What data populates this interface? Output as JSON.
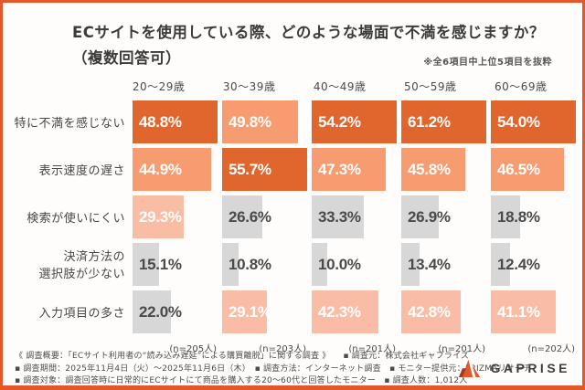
{
  "accent_color": "#e4572b",
  "title": {
    "line1": "ECサイトを使用している際、どのような場面で不満を感じますか？",
    "line2": "（複数回答可）",
    "note": "※全6項目中上位5項目を抜粋"
  },
  "chart_data": {
    "type": "bar",
    "orientation": "horizontal",
    "description": "Grid of horizontal bars; within each age column, bar width is scaled so the column maximum fills the track. Top three values per column are colored by rank, the rest are gray.",
    "columns": [
      "20〜29歳",
      "30〜39歳",
      "40〜49歳",
      "50〜59歳",
      "60〜69歳"
    ],
    "rows": [
      {
        "label": "特に不満を感じない",
        "values": [
          48.8,
          49.8,
          54.2,
          61.2,
          54.0
        ]
      },
      {
        "label": "表示速度の遅さ",
        "values": [
          44.9,
          55.7,
          47.3,
          45.8,
          46.5
        ]
      },
      {
        "label": "検索が使いにくい",
        "values": [
          29.3,
          26.6,
          33.3,
          26.9,
          18.8
        ]
      },
      {
        "label": "決済方法の\n選択肢が少ない",
        "values": [
          15.1,
          10.8,
          10.0,
          13.4,
          12.4
        ]
      },
      {
        "label": "入力項目の多さ",
        "values": [
          22.0,
          29.1,
          42.3,
          42.8,
          41.1
        ]
      }
    ],
    "value_suffix": "%",
    "sample_sizes": [
      "(n=205人)",
      "(n=203人)",
      "(n=201人)",
      "(n=201人)",
      "(n=202人)"
    ],
    "rank_colors": {
      "rank1": "#e0662e",
      "rank2": "#f79b70",
      "rank3": "#f9bca4",
      "other": "#d7d7d7"
    },
    "bar_text_colors": {
      "on_color": "#ffffff",
      "on_gray": "#4a4a4a"
    },
    "grid": false,
    "legend": false
  },
  "footer": {
    "line1": "《 調査概要：「ECサイト利用者の“読み込み遅延”による購買離脱」に関する調査 》　　▪ 調査元：株式会社ギャプライズ",
    "line2": "▪ 調査期間：2025年11月4日（火）〜2025年11月6日（木）　▪ 調査方法：インターネット調査　▪ モニター提供元：PRIZMAリサーチ",
    "line3": "▪ 調査対象：調査回答時に日常的にECサイトにて商品を購入する20〜60代と回答したモニター　▪ 調査人数：1,012人"
  },
  "logo": {
    "name": "GAPRISE",
    "wordmark": "GAPRISE",
    "icon_color": "#e4572b",
    "icon_dark_color": "#a03c22"
  }
}
